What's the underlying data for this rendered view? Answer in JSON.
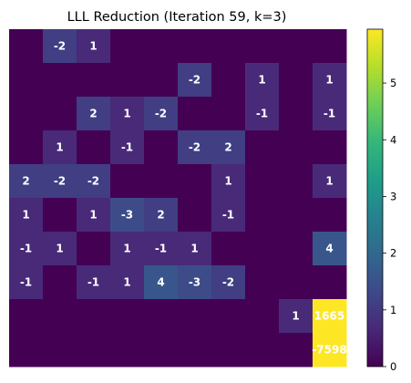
{
  "chart_data": {
    "type": "heatmap",
    "title": "LLL Reduction (Iteration 59, k=3)",
    "xlabel": "",
    "ylabel": "",
    "rows": 10,
    "cols": 10,
    "colormap": "viridis",
    "color_range": [
      0,
      5.95
    ],
    "matrix": [
      [
        0,
        -2,
        1,
        0,
        0,
        0,
        0,
        0,
        0,
        0
      ],
      [
        0,
        0,
        0,
        0,
        0,
        -2,
        0,
        1,
        0,
        1
      ],
      [
        0,
        0,
        2,
        1,
        -2,
        0,
        0,
        -1,
        0,
        -1
      ],
      [
        0,
        1,
        0,
        -1,
        0,
        -2,
        2,
        0,
        0,
        0
      ],
      [
        2,
        -2,
        -2,
        0,
        0,
        0,
        1,
        0,
        0,
        1
      ],
      [
        1,
        0,
        1,
        -3,
        2,
        0,
        -1,
        0,
        0,
        0
      ],
      [
        -1,
        1,
        0,
        1,
        -1,
        1,
        0,
        0,
        0,
        4
      ],
      [
        -1,
        0,
        -1,
        1,
        4,
        -3,
        -2,
        0,
        0,
        0
      ],
      [
        0,
        0,
        0,
        0,
        0,
        0,
        0,
        0,
        1,
        1665
      ],
      [
        0,
        0,
        0,
        0,
        0,
        0,
        0,
        0,
        0,
        -7598
      ]
    ],
    "colorbar": {
      "ticks": [
        0,
        1,
        2,
        3,
        4,
        5
      ],
      "tick_labels": [
        "0",
        "1",
        "2",
        "3",
        "4",
        "5"
      ]
    },
    "grid": false,
    "axes_visible": false
  }
}
